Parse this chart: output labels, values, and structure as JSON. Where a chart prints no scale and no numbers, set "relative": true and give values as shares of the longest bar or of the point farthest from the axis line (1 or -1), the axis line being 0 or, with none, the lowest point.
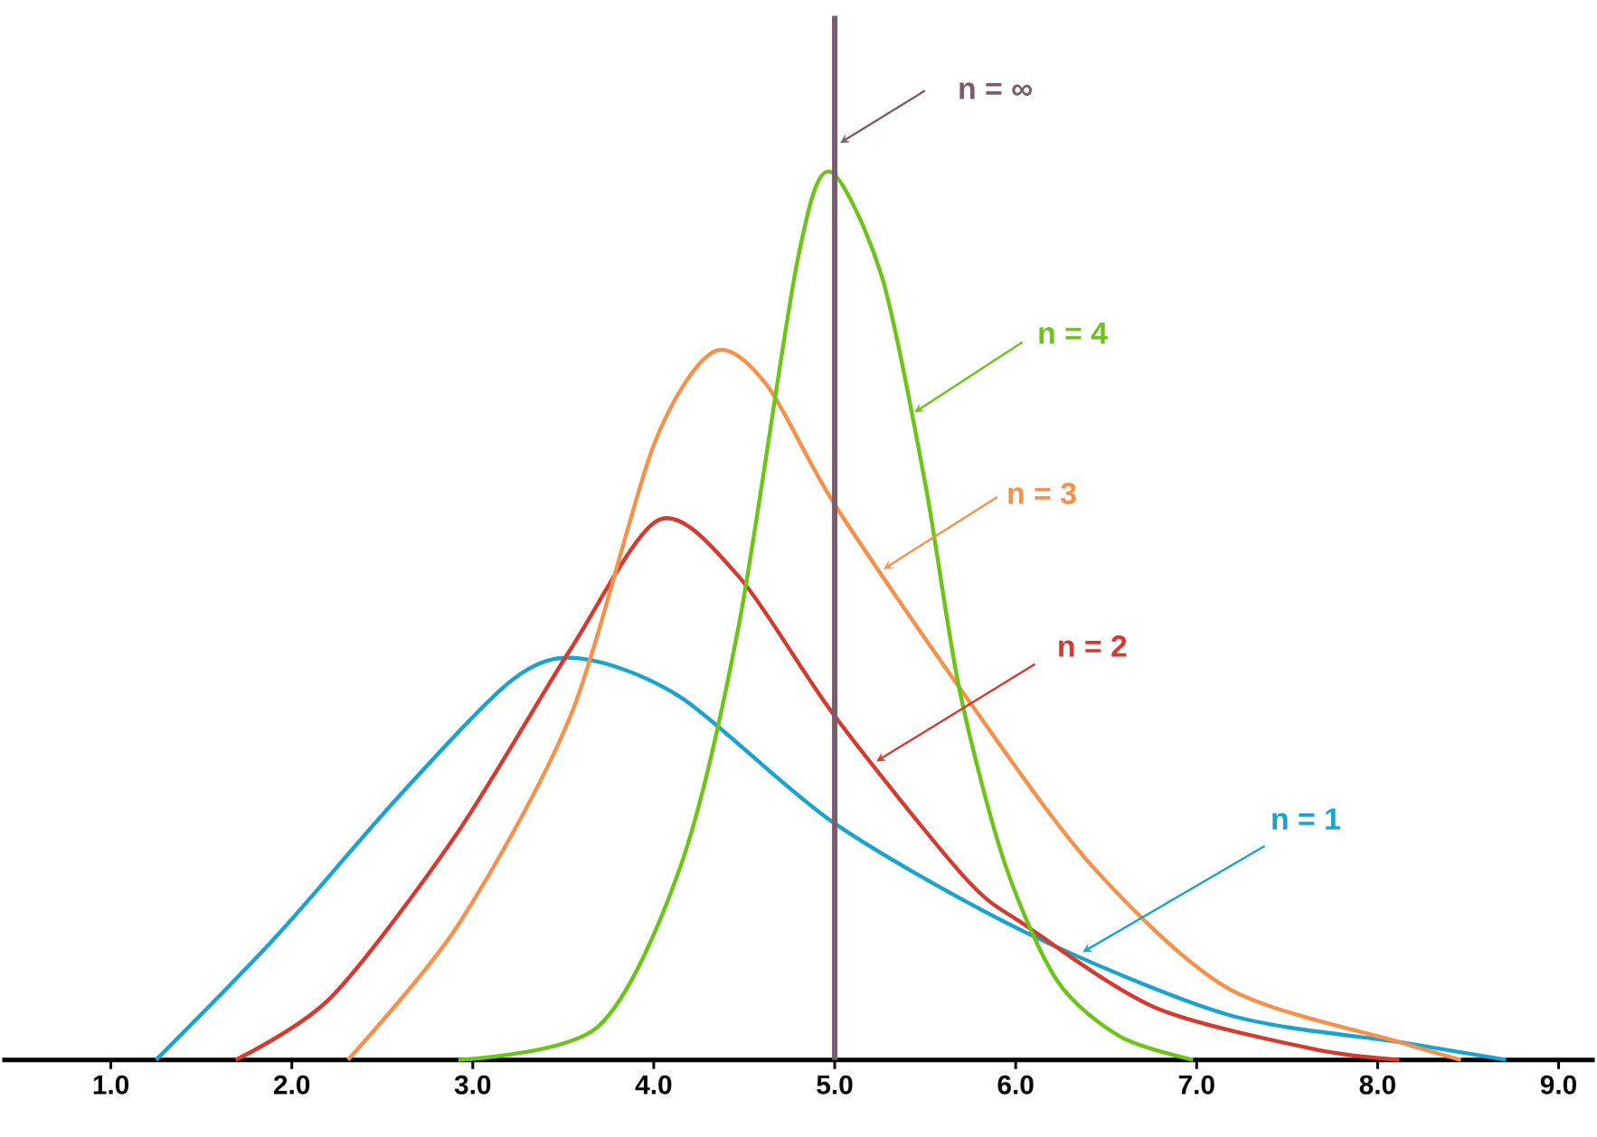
{
  "chart_data": {
    "type": "line",
    "relative": true,
    "xlim": [
      0.4,
      9.2
    ],
    "xticks": [
      {
        "value": 1,
        "label": "1.0"
      },
      {
        "value": 2,
        "label": "2.0"
      },
      {
        "value": 3,
        "label": "3.0"
      },
      {
        "value": 4,
        "label": "4.0"
      },
      {
        "value": 5,
        "label": "5.0"
      },
      {
        "value": 6,
        "label": "6.0"
      },
      {
        "value": 7,
        "label": "7.0"
      },
      {
        "value": 8,
        "label": "8.0"
      },
      {
        "value": 9,
        "label": "9.0"
      }
    ],
    "series": [
      {
        "name": "n = 1",
        "color": "#1aa3d1",
        "x": [
          1.25,
          1.91,
          2.58,
          3.22,
          3.59,
          4.15,
          5.0,
          6.05,
          7.17,
          8.12,
          8.71
        ],
        "values": [
          0,
          0.138,
          0.294,
          0.428,
          0.452,
          0.408,
          0.266,
          0.144,
          0.051,
          0.02,
          0
        ]
      },
      {
        "name": "n = 2",
        "color": "#d63a2f",
        "x": [
          1.69,
          2.22,
          2.91,
          3.54,
          4.03,
          4.47,
          5.0,
          5.72,
          6.05,
          6.77,
          7.65,
          8.12
        ],
        "values": [
          0,
          0.071,
          0.254,
          0.462,
          0.608,
          0.544,
          0.387,
          0.205,
          0.152,
          0.059,
          0.012,
          0
        ]
      },
      {
        "name": "n = 3",
        "color": "#f7914a",
        "x": [
          2.31,
          2.92,
          3.54,
          4.0,
          4.33,
          4.62,
          5.0,
          5.7,
          6.41,
          7.17,
          8.12,
          8.46
        ],
        "values": [
          0,
          0.152,
          0.387,
          0.692,
          0.797,
          0.761,
          0.625,
          0.416,
          0.221,
          0.081,
          0.02,
          0
        ]
      },
      {
        "name": "n = 4",
        "color": "#6cc417",
        "x": [
          2.92,
          3.69,
          4.15,
          4.47,
          4.79,
          4.97,
          5.26,
          5.5,
          5.69,
          5.94,
          6.23,
          6.58,
          6.98
        ],
        "values": [
          0,
          0.037,
          0.219,
          0.489,
          0.895,
          1,
          0.882,
          0.649,
          0.416,
          0.221,
          0.089,
          0.026,
          0
        ]
      }
    ],
    "ref_lines": [
      {
        "axis": "x",
        "value": 5,
        "label": "n = ∞",
        "color": "#7a5c6e"
      }
    ]
  }
}
